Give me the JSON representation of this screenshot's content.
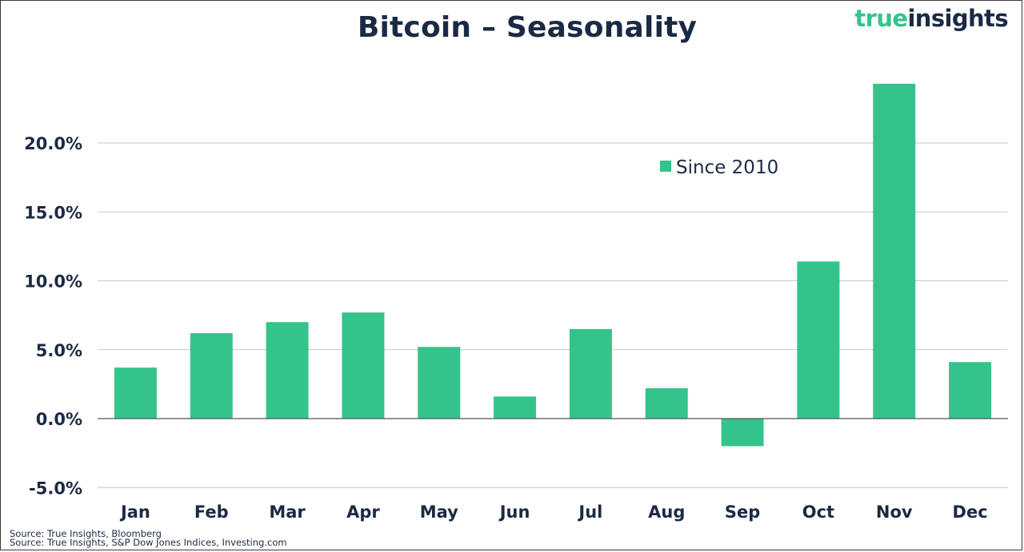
{
  "header": {
    "title": "Bitcoin – Seasonality",
    "logo_part1": "true",
    "logo_part2": "insights"
  },
  "footer": {
    "source_1": "Source: True Insights, Bloomberg",
    "source_2": "Source: True Insights, S&P Dow Jones Indices, Investing.com"
  },
  "colors": {
    "bar": "#34c48b",
    "text": "#1b2a44",
    "grid": "#c8c8c8",
    "zero_line": "#555555"
  },
  "chart_data": {
    "type": "bar",
    "title": "Bitcoin – Seasonality",
    "categories": [
      "Jan",
      "Feb",
      "Mar",
      "Apr",
      "May",
      "Jun",
      "Jul",
      "Aug",
      "Sep",
      "Oct",
      "Nov",
      "Dec"
    ],
    "series": [
      {
        "name": "Since 2010",
        "values": [
          3.7,
          6.2,
          7.0,
          7.7,
          5.2,
          1.6,
          6.5,
          2.2,
          -2.0,
          11.4,
          24.3,
          4.1
        ]
      }
    ],
    "yticks": [
      "-5.0%",
      "0.0%",
      "5.0%",
      "10.0%",
      "15.0%",
      "20.0%"
    ],
    "ytick_values": [
      -5,
      0,
      5,
      10,
      15,
      20
    ],
    "ylim": [
      -5,
      25
    ],
    "xlabel": "",
    "ylabel": "",
    "grid": true,
    "legend_position": "upper-center-right"
  }
}
